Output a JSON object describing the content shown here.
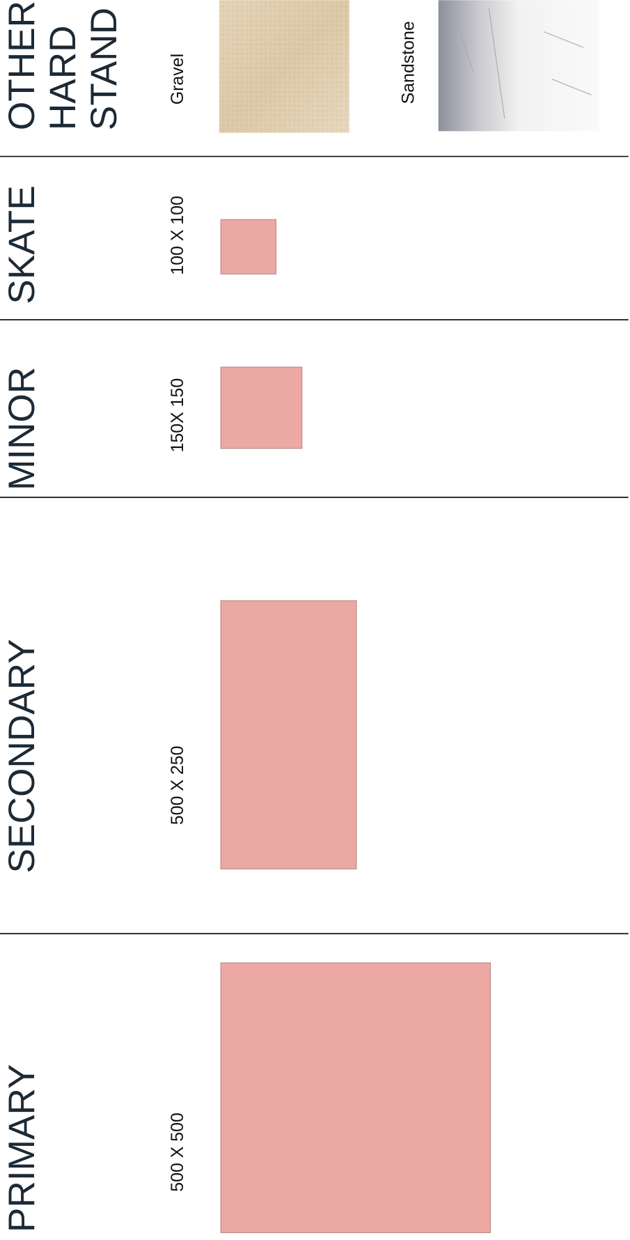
{
  "header": {
    "lines": [
      "OTHER",
      "HARD",
      "STAND"
    ]
  },
  "materials": [
    {
      "label": "Gravel"
    },
    {
      "label": "Sandstone"
    }
  ],
  "sections": [
    {
      "label": "SKATE",
      "size": "100 X 100"
    },
    {
      "label": "MINOR",
      "size": "150X 150"
    },
    {
      "label": "SECONDARY",
      "size": "500 X 250"
    },
    {
      "label": "PRIMARY",
      "size": "500 X 500"
    }
  ]
}
